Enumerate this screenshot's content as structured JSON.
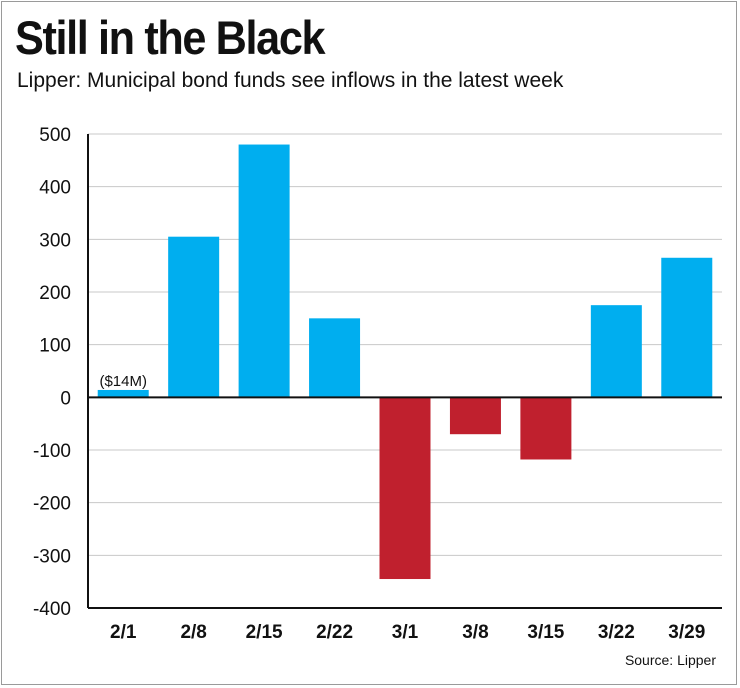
{
  "title": "Still in the Black",
  "subtitle": "Lipper: Municipal bond funds see inflows in the latest week",
  "source": "Source: Lipper",
  "colors": {
    "positive": "#00aeef",
    "negative": "#c0202e",
    "grid": "#c8c8c8",
    "axis": "#111111"
  },
  "chart_data": {
    "type": "bar",
    "categories": [
      "2/1",
      "2/8",
      "2/15",
      "2/22",
      "3/1",
      "3/8",
      "3/15",
      "3/22",
      "3/29"
    ],
    "values": [
      14,
      305,
      480,
      150,
      -345,
      -70,
      -118,
      175,
      265
    ],
    "annotations": [
      {
        "category": "2/1",
        "text": "($14M)"
      }
    ],
    "ylim": [
      -400,
      500
    ],
    "yticks": [
      500,
      400,
      300,
      200,
      100,
      0,
      -100,
      -200,
      -300,
      -400
    ],
    "ytick_labels": [
      "500",
      "400",
      "300",
      "200",
      "100",
      "0",
      "-100",
      "-200",
      "-300",
      "-400"
    ],
    "grid": true,
    "xlabel": "",
    "ylabel": ""
  }
}
